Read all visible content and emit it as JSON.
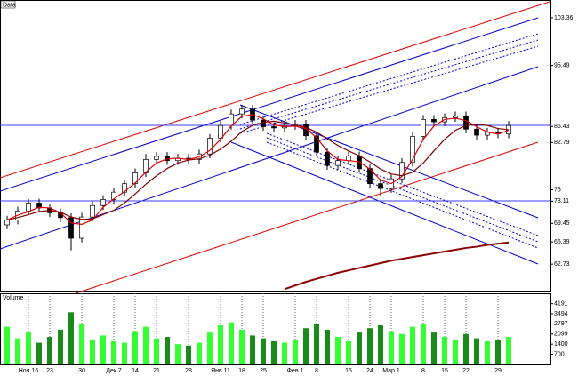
{
  "chart_data": {
    "type": "candlestick",
    "title": "Data",
    "volume_title": "Volume",
    "categories": [
      null,
      null,
      "Ноя 16",
      null,
      "23",
      null,
      null,
      "30",
      null,
      null,
      "Дек 7",
      null,
      "14",
      null,
      "21",
      null,
      null,
      "28",
      null,
      null,
      "Янв 11",
      null,
      "18",
      null,
      "25",
      null,
      null,
      "Фев 1",
      null,
      "8",
      null,
      null,
      "15",
      null,
      "24",
      null,
      "Мар 1",
      null,
      null,
      "8",
      null,
      "15",
      null,
      "22",
      null,
      null,
      "29",
      null
    ],
    "open": [
      69.2,
      70.0,
      71.5,
      72.8,
      72.0,
      71.2,
      70.4,
      67.0,
      70.5,
      72.4,
      73.4,
      74.6,
      76.0,
      77.8,
      80.0,
      80.5,
      79.8,
      80.2,
      80.0,
      80.9,
      83.5,
      85.6,
      87.5,
      88.3,
      86.5,
      85.4,
      85.2,
      85.6,
      85.8,
      83.9,
      81.2,
      79.0,
      79.8,
      80.6,
      78.5,
      76.0,
      75.2,
      76.8,
      79.5,
      83.8,
      86.6,
      86.2,
      86.9,
      87.2,
      85.0,
      84.0,
      84.5,
      84.2
    ],
    "high": [
      70.7,
      72.2,
      73.5,
      73.5,
      72.7,
      71.9,
      71.1,
      71.2,
      73.1,
      74.1,
      75.3,
      76.7,
      78.5,
      80.9,
      81.2,
      81.2,
      80.9,
      80.9,
      81.6,
      84.2,
      86.3,
      88.2,
      89.0,
      89.0,
      87.2,
      86.1,
      86.3,
      86.5,
      86.5,
      84.6,
      81.9,
      80.5,
      81.3,
      81.3,
      79.2,
      76.7,
      77.5,
      80.2,
      84.5,
      87.3,
      87.3,
      87.6,
      87.9,
      87.9,
      85.7,
      85.2,
      85.2,
      86.3
    ],
    "low": [
      68.5,
      69.3,
      70.8,
      71.3,
      70.5,
      69.7,
      65.0,
      66.3,
      69.8,
      71.7,
      72.7,
      73.9,
      75.3,
      77.1,
      79.3,
      79.1,
      79.1,
      79.3,
      79.3,
      80.2,
      82.8,
      84.9,
      86.8,
      85.8,
      84.7,
      84.5,
      84.5,
      84.9,
      83.2,
      80.5,
      78.3,
      78.3,
      79.1,
      77.8,
      75.3,
      74.0,
      74.5,
      76.1,
      78.8,
      83.1,
      85.5,
      85.5,
      86.2,
      84.3,
      83.3,
      83.3,
      83.5,
      83.5
    ],
    "close": [
      70.0,
      71.5,
      72.8,
      72.0,
      71.2,
      70.4,
      67.0,
      70.5,
      72.4,
      73.4,
      74.6,
      76.0,
      77.8,
      80.0,
      80.5,
      79.8,
      80.2,
      80.0,
      80.9,
      83.5,
      85.6,
      87.5,
      88.3,
      86.5,
      85.4,
      85.2,
      85.6,
      85.8,
      83.9,
      81.2,
      79.0,
      79.8,
      80.6,
      78.5,
      76.0,
      75.2,
      76.8,
      79.5,
      83.8,
      86.6,
      86.2,
      86.9,
      87.2,
      85.0,
      84.0,
      84.5,
      84.2,
      85.6
    ],
    "series": [
      {
        "color": "#e00000",
        "values": [
          70.0,
          70.8,
          71.4,
          72.1,
          72.0,
          71.2,
          69.5,
          69.3,
          70.0,
          72.1,
          73.5,
          74.7,
          76.1,
          77.9,
          79.4,
          80.1,
          80.2,
          80.0,
          80.4,
          81.5,
          83.3,
          85.5,
          87.1,
          87.4,
          86.7,
          85.7,
          85.4,
          85.5,
          85.1,
          83.6,
          81.4,
          80.0,
          79.8,
          79.6,
          78.4,
          76.6,
          76.0,
          77.2,
          80.0,
          83.3,
          85.5,
          86.6,
          86.8,
          86.4,
          85.4,
          84.5,
          84.2,
          84.8
        ]
      },
      {
        "color": "#800000",
        "values": [
          70.0,
          70.4,
          70.9,
          71.4,
          71.6,
          71.3,
          70.5,
          70.1,
          70.2,
          70.9,
          71.6,
          72.8,
          74.3,
          75.9,
          77.3,
          78.5,
          79.4,
          79.9,
          80.1,
          80.7,
          81.7,
          83.0,
          84.6,
          85.6,
          86.1,
          86.3,
          86.0,
          85.7,
          85.3,
          84.5,
          83.4,
          82.3,
          81.4,
          80.6,
          79.6,
          78.4,
          77.6,
          77.3,
          77.9,
          79.4,
          81.4,
          83.3,
          84.8,
          85.6,
          85.8,
          85.6,
          85.1,
          84.9
        ]
      },
      {
        "color": "#8b0000",
        "values": [
          null,
          null,
          null,
          null,
          null,
          null,
          null,
          null,
          null,
          null,
          null,
          null,
          null,
          null,
          null,
          null,
          null,
          null,
          null,
          null,
          null,
          null,
          null,
          null,
          null,
          null,
          58.6,
          59.2,
          59.8,
          60.3,
          60.8,
          61.3,
          61.7,
          62.1,
          62.5,
          62.9,
          63.3,
          63.6,
          63.9,
          64.2,
          64.5,
          64.8,
          65.1,
          65.4,
          65.6,
          65.9,
          66.1,
          66.3
        ]
      }
    ],
    "volume": [
      2600,
      1800,
      2200,
      1500,
      1900,
      2400,
      3600,
      2800,
      1700,
      2000,
      1600,
      1500,
      2300,
      2600,
      1800,
      1900,
      1400,
      1300,
      1500,
      2200,
      2700,
      2900,
      2400,
      2000,
      1800,
      1600,
      1500,
      1700,
      2500,
      2800,
      2400,
      1900,
      1600,
      2200,
      2500,
      2700,
      2300,
      2100,
      2600,
      2800,
      2200,
      1900,
      1700,
      2100,
      1800,
      1600,
      1700,
      1900
    ],
    "up_color": "#33ff33",
    "down_color": "#1a8a1a",
    "ylim": [
      58.5,
      106
    ],
    "yticks": [
      103.36,
      95.49,
      85.43,
      82.79,
      75,
      73.11,
      69.45,
      66.39,
      62.73
    ],
    "vlim": [
      0,
      4600
    ],
    "vticks": [
      4191,
      3494,
      2797,
      2099,
      1400,
      700
    ]
  }
}
